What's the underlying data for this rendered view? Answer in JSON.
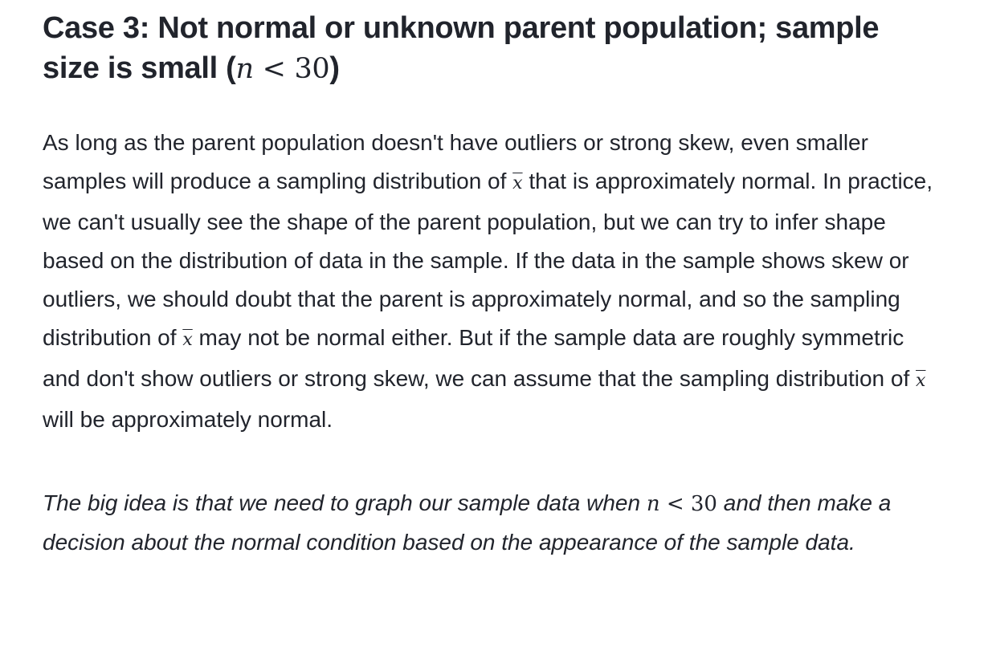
{
  "heading": {
    "text": "Case 3: Not normal or unknown parent population; sample size is small (",
    "math_var": "n",
    "math_rest": " < 30",
    "close": ")"
  },
  "body": {
    "seg1": "As long as the parent population doesn't have outliers or strong skew, even smaller samples will produce a sampling distribution of ",
    "var1": "x",
    "seg2": " that is approximately normal. In practice, we can't usually see the shape of the parent population, but we can try to infer shape based on the distribution of data in the sample. If the data in the sample shows skew or outliers, we should doubt that the parent is approximately normal, and so the sampling distribution of ",
    "var2": "x",
    "seg3": " may not be normal either. But if the sample data are roughly symmetric and don't show outliers or strong skew, we can assume that the sampling distribution of ",
    "var3": "x",
    "seg4": " will be approximately normal."
  },
  "big_idea": {
    "seg1": "The big idea is that we need to graph our sample data when ",
    "math_var": "n",
    "math_rest": " < 30",
    "seg2": " and then make a decision about the normal condition based on the appearance of the sample data."
  }
}
